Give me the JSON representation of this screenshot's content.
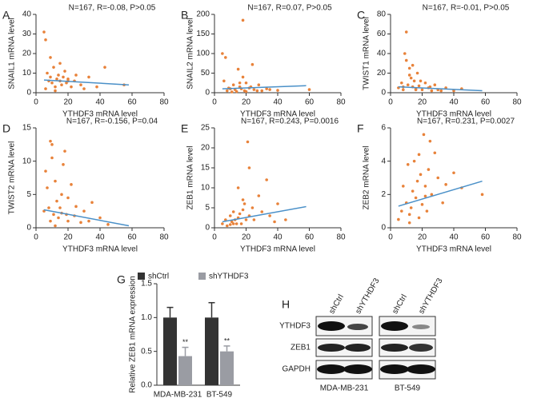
{
  "chart_data": [
    {
      "panel": "A",
      "type": "scatter",
      "title": "N=167, R=-0.08, P>0.05",
      "x_label": "YTHDF3 mRNA level",
      "y_label": "SNAIL1 mRNA level",
      "color": "#e8823a",
      "trend_color": "#4a90c8",
      "x": [
        5,
        6,
        7,
        8,
        9,
        10,
        11,
        12,
        13,
        14,
        15,
        16,
        17,
        18,
        19,
        20,
        22,
        24,
        25,
        28,
        30,
        33,
        38,
        43,
        55,
        6,
        9,
        12,
        15,
        20
      ],
      "values": [
        31,
        27,
        10,
        6,
        8,
        5,
        13,
        3,
        7,
        9,
        6,
        4,
        8,
        11,
        5,
        7,
        3,
        6,
        9,
        4,
        2,
        8,
        3,
        13,
        4,
        2,
        18,
        1,
        15,
        6
      ],
      "trend": {
        "x": [
          5,
          58
        ],
        "y": [
          6.5,
          4
        ]
      },
      "xlim": [
        0,
        80
      ],
      "xticks": [
        0,
        20,
        40,
        60,
        80
      ],
      "ylim": [
        0,
        40
      ],
      "yticks": [
        0,
        10,
        20,
        30,
        40
      ]
    },
    {
      "panel": "B",
      "type": "scatter",
      "title": "N=167, R=0.07, P>0.05",
      "x_label": "YTHDF3 mRNA level",
      "y_label": "SNAIL2 mRNA level",
      "color": "#e8823a",
      "trend_color": "#4a90c8",
      "x": [
        5,
        7,
        8,
        10,
        12,
        13,
        14,
        15,
        16,
        17,
        18,
        19,
        20,
        22,
        24,
        25,
        28,
        30,
        33,
        40,
        60,
        6,
        9,
        11,
        18,
        23,
        16,
        27,
        35,
        20
      ],
      "values": [
        100,
        90,
        5,
        10,
        20,
        8,
        3,
        60,
        15,
        10,
        185,
        5,
        25,
        12,
        72,
        8,
        20,
        5,
        10,
        6,
        8,
        30,
        12,
        2,
        40,
        15,
        25,
        5,
        8,
        3
      ],
      "trend": {
        "x": [
          5,
          58
        ],
        "y": [
          10,
          18
        ]
      },
      "xlim": [
        0,
        80
      ],
      "xticks": [
        0,
        20,
        40,
        60,
        80
      ],
      "ylim": [
        0,
        200
      ],
      "yticks": [
        0,
        50,
        100,
        150,
        200
      ]
    },
    {
      "panel": "C",
      "type": "scatter",
      "title": "N=167, R=-0.01, P>0.05",
      "x_label": "YTHDF3 mRNA level",
      "y_label": "TWIST1 mRNA level",
      "color": "#e8823a",
      "trend_color": "#4a90c8",
      "x": [
        5,
        7,
        8,
        9,
        10,
        11,
        12,
        13,
        14,
        15,
        16,
        17,
        18,
        20,
        22,
        24,
        26,
        28,
        30,
        35,
        40,
        45,
        10,
        12,
        19,
        25,
        32,
        14,
        16,
        8
      ],
      "values": [
        5,
        10,
        3,
        40,
        62,
        8,
        25,
        15,
        6,
        12,
        4,
        20,
        7,
        3,
        10,
        5,
        2,
        8,
        3,
        5,
        2,
        4,
        33,
        18,
        12,
        6,
        2,
        28,
        3,
        6
      ],
      "trend": {
        "x": [
          5,
          58
        ],
        "y": [
          6,
          2
        ]
      },
      "xlim": [
        0,
        80
      ],
      "xticks": [
        0,
        20,
        40,
        60,
        80
      ],
      "ylim": [
        0,
        80
      ],
      "yticks": [
        0,
        20,
        40,
        60,
        80
      ]
    },
    {
      "panel": "D",
      "type": "scatter",
      "title": "N=167, R=-0.156, P=0.04",
      "x_label": "YTHDF3 mRNA level",
      "y_label": "TWIST2 mRNA level",
      "color": "#e8823a",
      "trend_color": "#4a90c8",
      "x": [
        5,
        6,
        7,
        8,
        9,
        10,
        11,
        12,
        13,
        14,
        15,
        16,
        17,
        18,
        19,
        20,
        22,
        24,
        25,
        28,
        30,
        33,
        35,
        40,
        45,
        10,
        12,
        16,
        9,
        20
      ],
      "values": [
        2.5,
        8.5,
        6,
        3,
        1,
        12.5,
        2,
        7,
        4,
        1.5,
        3,
        5,
        9.5,
        11.5,
        2,
        1,
        6.5,
        1.8,
        3.2,
        0.8,
        2.5,
        1,
        3.8,
        1.5,
        0.5,
        10.5,
        0.3,
        2.2,
        13,
        4.5
      ],
      "trend": {
        "x": [
          5,
          58
        ],
        "y": [
          2.7,
          0.3
        ]
      },
      "xlim": [
        0,
        80
      ],
      "xticks": [
        0,
        20,
        40,
        60,
        80
      ],
      "ylim": [
        0,
        15
      ],
      "yticks": [
        0,
        5,
        10,
        15
      ]
    },
    {
      "panel": "E",
      "type": "scatter",
      "title": "N=167, R=0.243, P=0.0016",
      "x_label": "YTHDF3 mRNA level",
      "y_label": "ZEB1 mRNA level",
      "color": "#e8823a",
      "trend_color": "#4a90c8",
      "x": [
        5,
        7,
        8,
        10,
        11,
        12,
        13,
        14,
        15,
        16,
        17,
        18,
        19,
        20,
        21,
        22,
        24,
        25,
        28,
        30,
        33,
        35,
        38,
        40,
        45,
        22,
        10,
        15,
        18,
        12
      ],
      "values": [
        1,
        2,
        0.5,
        3,
        1.5,
        4,
        2,
        1,
        2.5,
        3.5,
        1,
        4.5,
        6,
        2,
        21.5,
        3,
        5,
        2,
        8,
        4,
        12,
        3,
        1.5,
        6,
        2,
        15,
        0.8,
        10,
        7,
        1
      ],
      "trend": {
        "x": [
          5,
          58
        ],
        "y": [
          1.5,
          5.3
        ]
      },
      "xlim": [
        0,
        80
      ],
      "xticks": [
        0,
        20,
        40,
        60,
        80
      ],
      "ylim": [
        0,
        25
      ],
      "yticks": [
        0,
        5,
        10,
        15,
        20,
        25
      ]
    },
    {
      "panel": "F",
      "type": "scatter",
      "title": "N=167, R=0.231, P=0.0027",
      "x_label": "YTHDF3 mRNA level",
      "y_label": "ZEB2 mRNA level",
      "color": "#e8823a",
      "trend_color": "#4a90c8",
      "x": [
        5,
        7,
        8,
        10,
        11,
        12,
        13,
        14,
        15,
        16,
        17,
        18,
        19,
        20,
        21,
        22,
        23,
        24,
        25,
        26,
        28,
        30,
        33,
        35,
        40,
        45,
        58,
        12,
        18,
        22
      ],
      "values": [
        0.5,
        1,
        2.5,
        1.5,
        3.8,
        0.8,
        1.2,
        2.2,
        4,
        1.8,
        2.8,
        0.6,
        3.2,
        1.4,
        5.6,
        2.5,
        1,
        3.5,
        5.2,
        2,
        4.5,
        3,
        1.5,
        2.6,
        3.3,
        2.4,
        2,
        0.3,
        4.4,
        1.9
      ],
      "trend": {
        "x": [
          5,
          58
        ],
        "y": [
          1.3,
          2.8
        ]
      },
      "xlim": [
        0,
        80
      ],
      "xticks": [
        0,
        20,
        40,
        60,
        80
      ],
      "ylim": [
        0,
        6
      ],
      "yticks": [
        0,
        2,
        4,
        6
      ]
    },
    {
      "panel": "G",
      "type": "bar",
      "y_label": "Relative ZEB1 mRNA expression",
      "categories": [
        "MDA-MB-231",
        "BT-549"
      ],
      "series": [
        {
          "name": "shCtrl",
          "color": "#333333",
          "values": [
            1,
            1
          ],
          "errors": [
            0.15,
            0.22
          ]
        },
        {
          "name": "shYTHDF3",
          "color": "#9a9ca3",
          "values": [
            0.43,
            0.5
          ],
          "errors": [
            0.13,
            0.08
          ],
          "annotations": [
            "**",
            "**"
          ]
        }
      ],
      "ylim": [
        0,
        1.5
      ],
      "yticks": [
        {
          "value": 0,
          "label": "0.0"
        },
        {
          "value": 0.5,
          "label": "0.5"
        },
        {
          "value": 1,
          "label": "1.0"
        },
        {
          "value": 1.5,
          "label": "1.5"
        }
      ]
    }
  ],
  "blot": {
    "panel": "H",
    "rows": [
      "YTHDF3",
      "ZEB1",
      "GAPDH"
    ],
    "lanes": [
      "shCtrl",
      "shYTHDF3"
    ],
    "groups": [
      "MDA-MB-231",
      "BT-549"
    ]
  }
}
